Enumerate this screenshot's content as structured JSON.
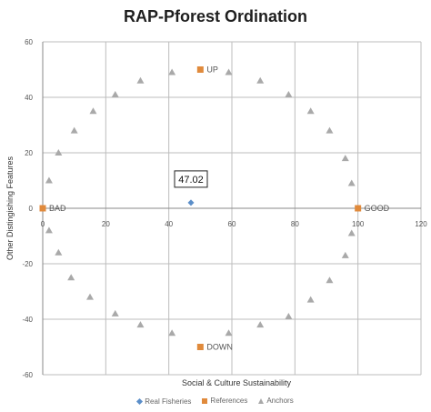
{
  "chart_data": {
    "type": "scatter",
    "title": "RAP-Pforest Ordination",
    "xlabel": "Social & Culture Sustainability",
    "ylabel": "Other Distingishing Features",
    "xlim": [
      0,
      120
    ],
    "ylim": [
      -60,
      60
    ],
    "x_ticks": [
      "0",
      "20",
      "40",
      "60",
      "80",
      "100",
      "120"
    ],
    "y_ticks": [
      "60",
      "40",
      "20",
      "0",
      "-20",
      "-40",
      "-60"
    ],
    "grid": true,
    "legend_position": "bottom",
    "series": [
      {
        "name": "Real Fisheries",
        "marker": "diamond",
        "color": "#5b8ec9",
        "points": [
          {
            "x": 47.02,
            "y": 2
          }
        ]
      },
      {
        "name": "References",
        "marker": "square",
        "color": "#e08a3c",
        "points": [
          {
            "x": 50,
            "y": 50,
            "label": "UP"
          },
          {
            "x": 0,
            "y": 0,
            "label": "BAD"
          },
          {
            "x": 100,
            "y": 0,
            "label": "GOOD"
          },
          {
            "x": 50,
            "y": -50,
            "label": "DOWN"
          }
        ]
      },
      {
        "name": "Anchors",
        "marker": "triangle",
        "color": "#a9a9a9",
        "points": [
          {
            "x": 41,
            "y": 49
          },
          {
            "x": 59,
            "y": 49
          },
          {
            "x": 69,
            "y": 46
          },
          {
            "x": 31,
            "y": 46
          },
          {
            "x": 78,
            "y": 41
          },
          {
            "x": 23,
            "y": 41
          },
          {
            "x": 85,
            "y": 35
          },
          {
            "x": 16,
            "y": 35
          },
          {
            "x": 91,
            "y": 28
          },
          {
            "x": 10,
            "y": 28
          },
          {
            "x": 5,
            "y": 20
          },
          {
            "x": 96,
            "y": 18
          },
          {
            "x": 2,
            "y": 10
          },
          {
            "x": 98,
            "y": 9
          },
          {
            "x": 2,
            "y": -8
          },
          {
            "x": 98,
            "y": -9
          },
          {
            "x": 5,
            "y": -16
          },
          {
            "x": 96,
            "y": -17
          },
          {
            "x": 9,
            "y": -25
          },
          {
            "x": 91,
            "y": -26
          },
          {
            "x": 15,
            "y": -32
          },
          {
            "x": 85,
            "y": -33
          },
          {
            "x": 23,
            "y": -38
          },
          {
            "x": 78,
            "y": -39
          },
          {
            "x": 31,
            "y": -42
          },
          {
            "x": 69,
            "y": -42
          },
          {
            "x": 41,
            "y": -45
          },
          {
            "x": 59,
            "y": -45
          }
        ]
      }
    ],
    "annotations": [
      {
        "text": "47.02",
        "x": 47.02,
        "y": 2
      }
    ]
  }
}
